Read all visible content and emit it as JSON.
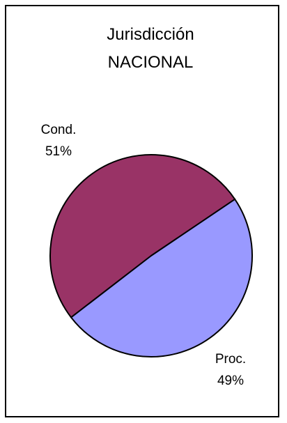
{
  "chart_data": {
    "type": "pie",
    "title": [
      "Jurisdicción",
      "NACIONAL"
    ],
    "slices": [
      {
        "label": "Cond.",
        "value": 51,
        "percent_label": "51%",
        "color": "#993366"
      },
      {
        "label": "Proc.",
        "value": 49,
        "percent_label": "49%",
        "color": "#9999FF"
      }
    ],
    "legend": "none",
    "border": true
  }
}
